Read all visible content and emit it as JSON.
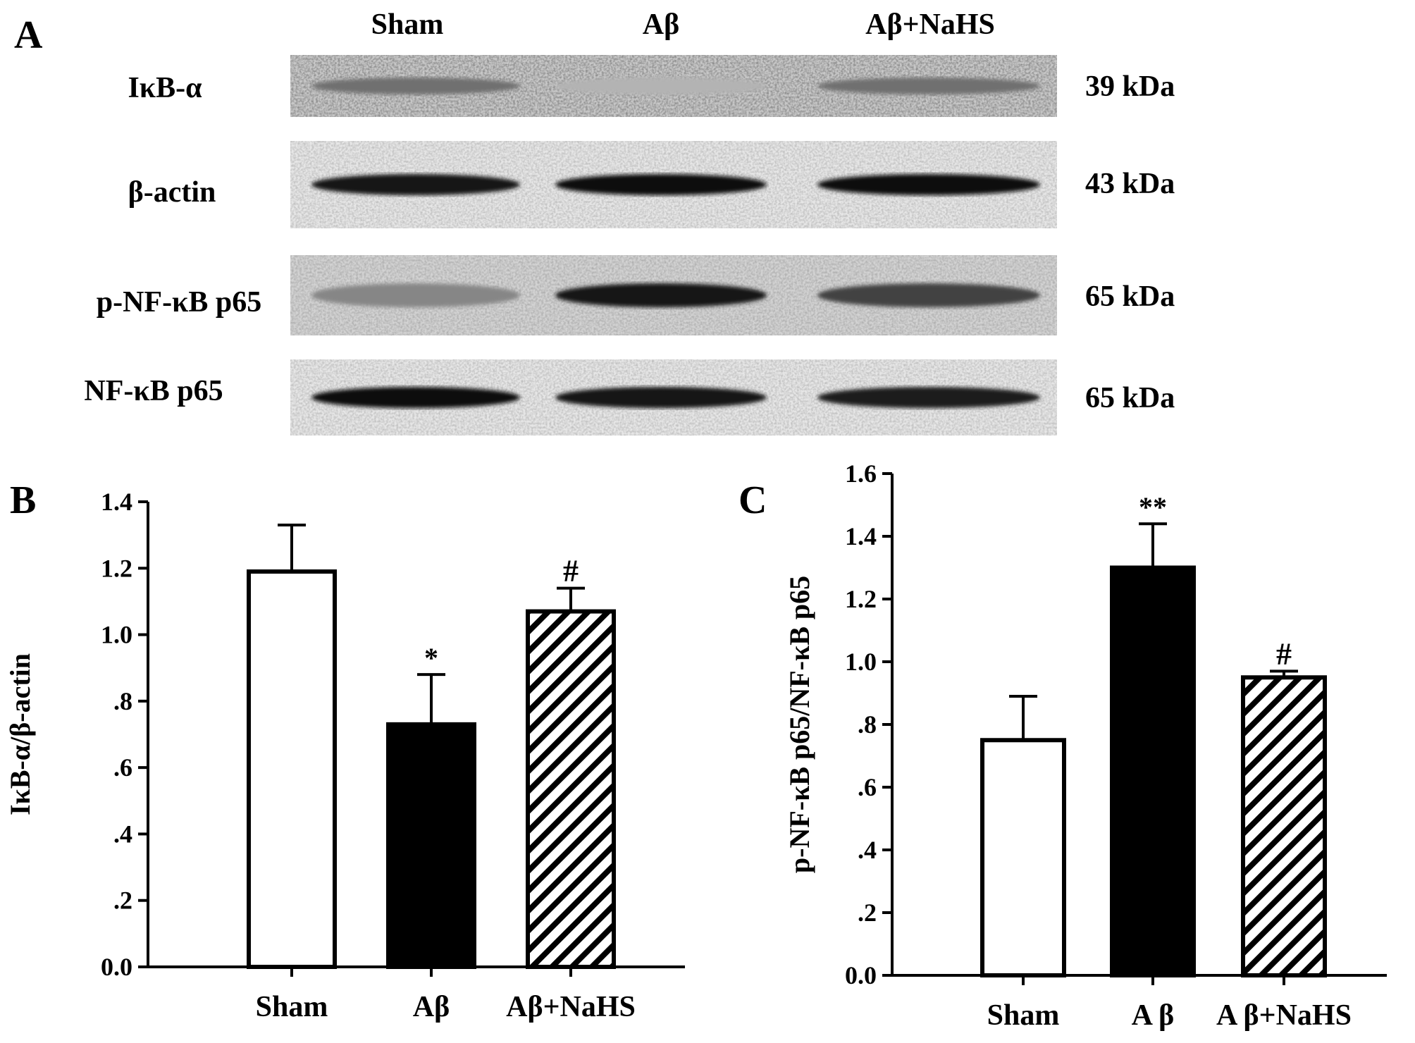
{
  "panel_a": {
    "letter": "A",
    "lanes": [
      "Sham",
      "Aβ",
      "Aβ+NaHS"
    ],
    "blots": [
      {
        "label": "IκB-α",
        "mw": "39  kDa",
        "intensity": [
          0.55,
          0.25,
          0.55
        ],
        "style": "faint"
      },
      {
        "label": "β-actin",
        "mw": "43  kDa",
        "intensity": [
          0.95,
          0.98,
          1.0
        ],
        "style": "strong"
      },
      {
        "label": "p-NF-κB p65",
        "mw": "65  kDa",
        "intensity": [
          0.45,
          0.95,
          0.75
        ],
        "style": "medium"
      },
      {
        "label": "NF-κB p65",
        "mw": "65  kDa",
        "intensity": [
          1.0,
          0.95,
          0.92
        ],
        "style": "strong"
      }
    ]
  },
  "chart_data": [
    {
      "type": "bar",
      "letter": "B",
      "categories": [
        "Sham",
        "Aβ",
        "Aβ+NaHS"
      ],
      "values": [
        1.19,
        0.73,
        1.07
      ],
      "errors": [
        0.14,
        0.15,
        0.07
      ],
      "annotations": [
        "",
        "*",
        "#"
      ],
      "fills": [
        "white",
        "black",
        "hatch"
      ],
      "ylabel": "IκB-α/β-actin",
      "ylim": [
        0,
        1.4
      ],
      "yticks": [
        "0.0",
        ".2",
        ".4",
        ".6",
        ".8",
        "1.0",
        "1.2",
        "1.4"
      ],
      "ytick_values": [
        0,
        0.2,
        0.4,
        0.6,
        0.8,
        1.0,
        1.2,
        1.4
      ]
    },
    {
      "type": "bar",
      "letter": "C",
      "categories": [
        "Sham",
        "A β",
        "A β+NaHS"
      ],
      "values": [
        0.75,
        1.3,
        0.95
      ],
      "errors": [
        0.14,
        0.14,
        0.02
      ],
      "annotations": [
        "",
        "**",
        "#"
      ],
      "fills": [
        "white",
        "black",
        "hatch"
      ],
      "ylabel": "p-NF-κB p65/NF-κB p65",
      "ylim": [
        0,
        1.6
      ],
      "yticks": [
        "0.0",
        ".2",
        ".4",
        ".6",
        ".8",
        "1.0",
        "1.2",
        "1.4",
        "1.6"
      ],
      "ytick_values": [
        0,
        0.2,
        0.4,
        0.6,
        0.8,
        1.0,
        1.2,
        1.4,
        1.6
      ]
    }
  ]
}
